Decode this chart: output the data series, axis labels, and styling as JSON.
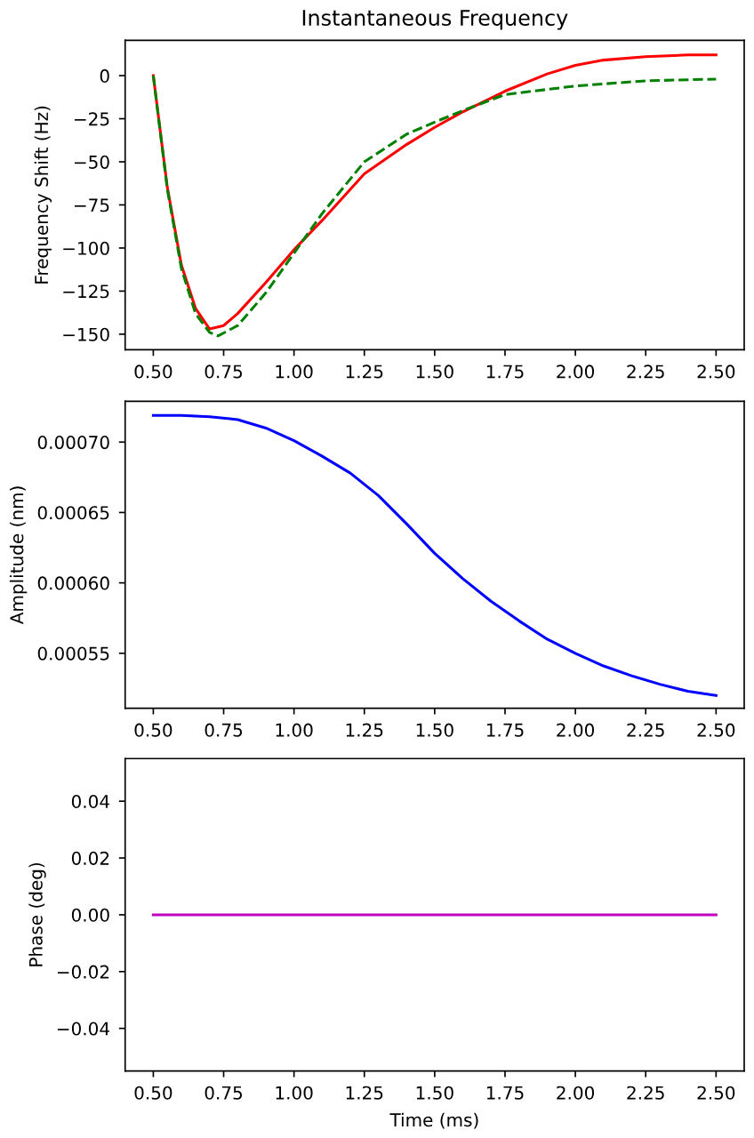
{
  "chart_data": [
    {
      "type": "line",
      "title": "Instantaneous Frequency",
      "ylabel": "Frequency Shift (Hz)",
      "xlim": [
        0.4,
        2.6
      ],
      "ylim": [
        -159,
        20.5
      ],
      "xticks": [
        {
          "value": 0.5,
          "label": "0.50"
        },
        {
          "value": 0.75,
          "label": "0.75"
        },
        {
          "value": 1.0,
          "label": "1.00"
        },
        {
          "value": 1.25,
          "label": "1.25"
        },
        {
          "value": 1.5,
          "label": "1.50"
        },
        {
          "value": 1.75,
          "label": "1.75"
        },
        {
          "value": 2.0,
          "label": "2.00"
        },
        {
          "value": 2.25,
          "label": "2.25"
        },
        {
          "value": 2.5,
          "label": "2.50"
        }
      ],
      "yticks": [
        -150,
        -125,
        -100,
        -75,
        -50,
        -25,
        0
      ],
      "grid": false,
      "series": [
        {
          "color": "#ff0000",
          "line_style": "solid",
          "x": [
            0.5,
            0.55,
            0.6,
            0.65,
            0.7,
            0.75,
            0.8,
            0.9,
            1.0,
            1.1,
            1.25,
            1.4,
            1.5,
            1.6,
            1.75,
            1.9,
            2.0,
            2.1,
            2.25,
            2.4,
            2.5
          ],
          "values": [
            0,
            -65,
            -110,
            -135,
            -147,
            -145,
            -138,
            -120,
            -101,
            -84,
            -57,
            -40,
            -30,
            -21,
            -9,
            1,
            6,
            9,
            11,
            12,
            12
          ]
        },
        {
          "color": "#008000",
          "line_style": "dashed",
          "x": [
            0.5,
            0.55,
            0.6,
            0.65,
            0.7,
            0.73,
            0.8,
            0.9,
            1.0,
            1.1,
            1.25,
            1.4,
            1.5,
            1.62,
            1.75,
            1.9,
            2.0,
            2.25,
            2.5
          ],
          "values": [
            0,
            -66,
            -112,
            -138,
            -149,
            -151,
            -145,
            -126,
            -103,
            -80,
            -50,
            -34,
            -27,
            -19,
            -11,
            -8,
            -6,
            -3,
            -2
          ]
        }
      ]
    },
    {
      "type": "line",
      "ylabel": "Amplitude (nm)",
      "xlim": [
        0.4,
        2.6
      ],
      "ylim": [
        0.000511,
        0.000729
      ],
      "xticks": [
        {
          "value": 0.5,
          "label": "0.50"
        },
        {
          "value": 0.75,
          "label": "0.75"
        },
        {
          "value": 1.0,
          "label": "1.00"
        },
        {
          "value": 1.25,
          "label": "1.25"
        },
        {
          "value": 1.5,
          "label": "1.50"
        },
        {
          "value": 1.75,
          "label": "1.75"
        },
        {
          "value": 2.0,
          "label": "2.00"
        },
        {
          "value": 2.25,
          "label": "2.25"
        },
        {
          "value": 2.5,
          "label": "2.50"
        }
      ],
      "yticks": [
        {
          "value": 0.00055,
          "label": "0.00055"
        },
        {
          "value": 0.0006,
          "label": "0.00060"
        },
        {
          "value": 0.00065,
          "label": "0.00065"
        },
        {
          "value": 0.0007,
          "label": "0.00070"
        }
      ],
      "grid": false,
      "series": [
        {
          "color": "#0000ff",
          "line_style": "solid",
          "x": [
            0.5,
            0.6,
            0.7,
            0.8,
            0.9,
            1.0,
            1.1,
            1.2,
            1.3,
            1.4,
            1.5,
            1.6,
            1.7,
            1.8,
            1.9,
            2.0,
            2.1,
            2.2,
            2.3,
            2.4,
            2.5
          ],
          "values": [
            0.000719,
            0.000719,
            0.000718,
            0.000716,
            0.00071,
            0.000701,
            0.00069,
            0.000678,
            0.000662,
            0.000642,
            0.000621,
            0.000603,
            0.000587,
            0.000573,
            0.00056,
            0.00055,
            0.000541,
            0.000534,
            0.000528,
            0.000523,
            0.00052
          ]
        }
      ]
    },
    {
      "type": "line",
      "ylabel": "Phase (deg)",
      "xlabel": "Time (ms)",
      "xlim": [
        0.4,
        2.6
      ],
      "ylim": [
        -0.055,
        0.055
      ],
      "xticks": [
        {
          "value": 0.5,
          "label": "0.50"
        },
        {
          "value": 0.75,
          "label": "0.75"
        },
        {
          "value": 1.0,
          "label": "1.00"
        },
        {
          "value": 1.25,
          "label": "1.25"
        },
        {
          "value": 1.5,
          "label": "1.50"
        },
        {
          "value": 1.75,
          "label": "1.75"
        },
        {
          "value": 2.0,
          "label": "2.00"
        },
        {
          "value": 2.25,
          "label": "2.25"
        },
        {
          "value": 2.5,
          "label": "2.50"
        }
      ],
      "yticks": [
        {
          "value": -0.04,
          "label": "−0.04"
        },
        {
          "value": -0.02,
          "label": "−0.02"
        },
        {
          "value": 0.0,
          "label": "0.00"
        },
        {
          "value": 0.02,
          "label": "0.02"
        },
        {
          "value": 0.04,
          "label": "0.04"
        }
      ],
      "grid": false,
      "series": [
        {
          "color": "#bf00bf",
          "line_style": "solid",
          "x": [
            0.5,
            2.5
          ],
          "values": [
            0,
            0
          ]
        }
      ]
    }
  ]
}
